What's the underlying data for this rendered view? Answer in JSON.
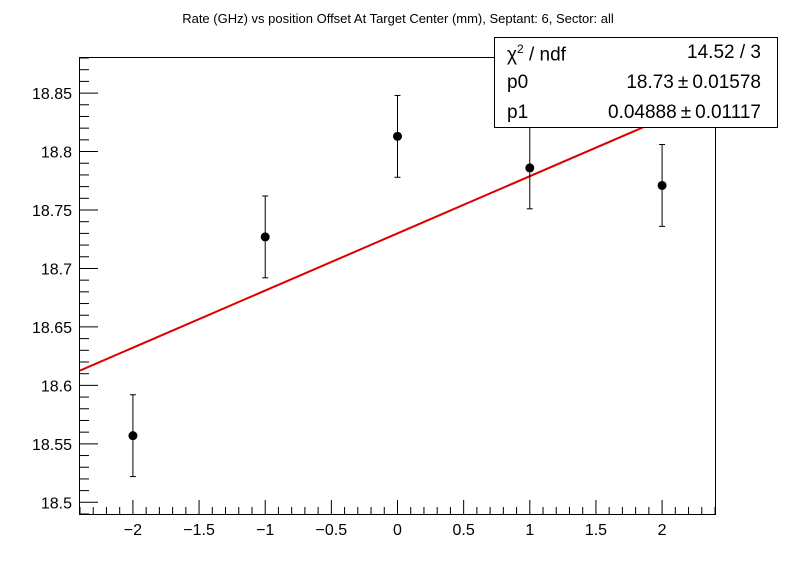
{
  "chart_data": {
    "type": "scatter",
    "title": "Rate (GHz) vs position Offset At Target Center (mm), Septant: 6, Sector: all",
    "xlabel": "",
    "ylabel": "",
    "xlim": [
      -2.4,
      2.4
    ],
    "ylim": [
      18.49,
      18.88
    ],
    "x_ticks": [
      -2,
      -1.5,
      -1,
      -0.5,
      0,
      0.5,
      1,
      1.5,
      2
    ],
    "x_tick_labels": [
      "−2",
      "−1.5",
      "−1",
      "−0.5",
      "0",
      "0.5",
      "1",
      "1.5",
      "2"
    ],
    "y_ticks": [
      18.5,
      18.55,
      18.6,
      18.65,
      18.7,
      18.75,
      18.8,
      18.85
    ],
    "y_tick_labels": [
      "18.5",
      "18.55",
      "18.6",
      "18.65",
      "18.7",
      "18.75",
      "18.8",
      "18.85"
    ],
    "series": [
      {
        "type": "scatter",
        "x": [
          -2,
          -1,
          0,
          1,
          2
        ],
        "y": [
          18.557,
          18.727,
          18.813,
          18.786,
          18.771
        ],
        "yerr": [
          0.035,
          0.035,
          0.035,
          0.035,
          0.035
        ],
        "color": "#000000"
      },
      {
        "type": "line",
        "fit": "p0 + p1*x",
        "p0": 18.73,
        "p1": 0.04888,
        "color": "#dd0000"
      }
    ],
    "grid": false,
    "legend": "none"
  },
  "stats": {
    "chi2_symbol": "χ",
    "chi2_sup": "2",
    "chi2_rest": " / ndf",
    "chi2_value": "14.52 / 3",
    "p0_label": "p0",
    "p0_value": "18.73",
    "p0_error": "0.01578",
    "p1_label": "p1",
    "p1_value": "0.04888",
    "p1_error": "0.01117",
    "pm_symbol": "±"
  }
}
